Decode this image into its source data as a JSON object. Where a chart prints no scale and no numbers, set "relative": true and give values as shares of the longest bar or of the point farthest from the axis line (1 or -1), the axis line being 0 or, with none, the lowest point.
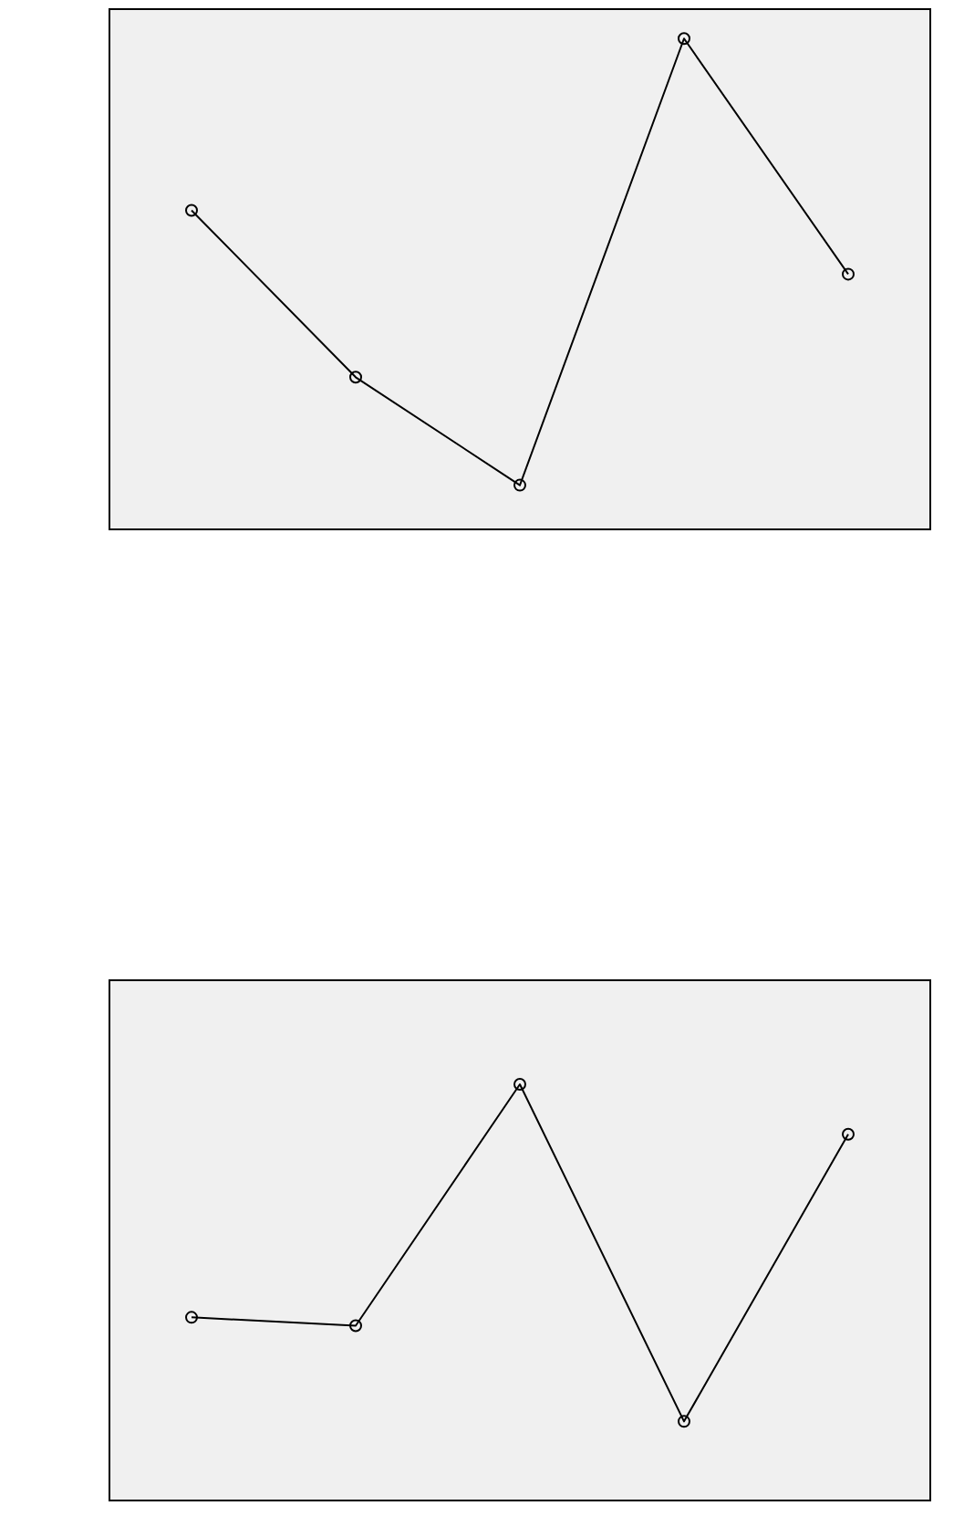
{
  "chart_data": [
    {
      "type": "line",
      "relative": true,
      "categories": [
        null,
        null,
        null,
        null,
        null
      ],
      "values": [
        0.65,
        0.31,
        0.09,
        1,
        0.52
      ],
      "color": "#000000",
      "marker": "circle",
      "tick_labels": false,
      "grid": false,
      "legend": false
    },
    {
      "type": "line",
      "relative": true,
      "categories": [
        null,
        null,
        null,
        null,
        null
      ],
      "values": [
        0.44,
        0.42,
        1,
        0.19,
        0.88
      ],
      "color": "#000000",
      "marker": "circle",
      "tick_labels": false,
      "grid": false,
      "legend": false
    }
  ]
}
